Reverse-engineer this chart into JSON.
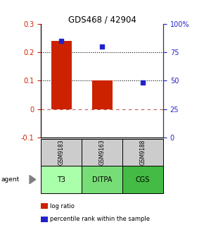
{
  "title": "GDS468 / 42904",
  "samples": [
    "GSM9183",
    "GSM9163",
    "GSM9188"
  ],
  "agents": [
    "T3",
    "DITPA",
    "CGS"
  ],
  "log_ratios": [
    0.24,
    0.1,
    0.0
  ],
  "percentile_ranks_pct": [
    85,
    80,
    48
  ],
  "bar_color": "#cc2200",
  "dot_color": "#2222cc",
  "bar_width": 0.5,
  "ylim_left": [
    -0.1,
    0.3
  ],
  "ylim_right": [
    0,
    100
  ],
  "yticks_left": [
    -0.1,
    0.0,
    0.1,
    0.2,
    0.3
  ],
  "ytick_labels_left": [
    "-0.1",
    "0",
    "0.1",
    "0.2",
    "0.3"
  ],
  "yticks_right": [
    0,
    25,
    50,
    75,
    100
  ],
  "ytick_labels_right": [
    "0",
    "25",
    "50",
    "75",
    "100%"
  ],
  "hline_y": [
    0.1,
    0.2
  ],
  "zero_line_y": 0.0,
  "agent_colors": [
    "#aaffaa",
    "#77dd77",
    "#44bb44"
  ],
  "sample_bg": "#cccccc",
  "legend_labels": [
    "log ratio",
    "percentile rank within the sample"
  ],
  "legend_colors": [
    "#cc2200",
    "#2222cc"
  ]
}
